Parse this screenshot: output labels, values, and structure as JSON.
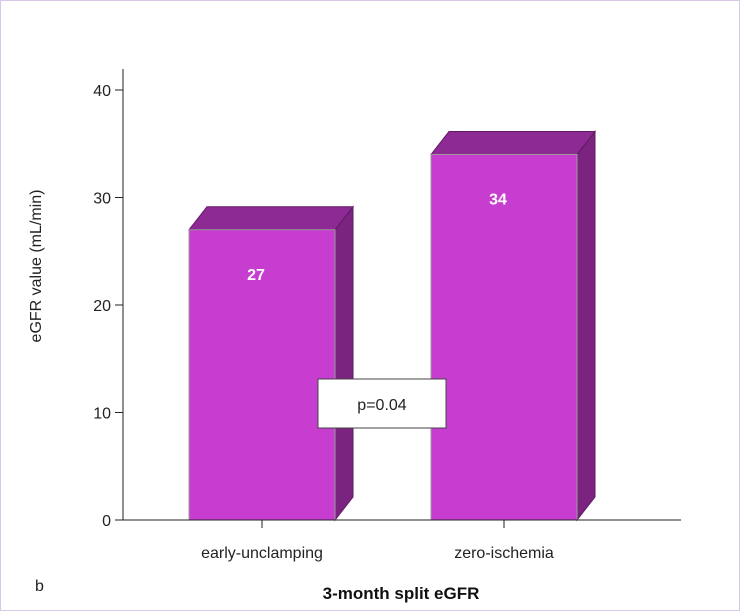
{
  "panel_label": "b",
  "colors": {
    "bar_front": "#c63dcf",
    "bar_top": "#8e2a94",
    "bar_side": "#7a2480",
    "bar_edge": "#5e1a63",
    "axis": "#222222"
  },
  "chart_data": {
    "type": "bar",
    "title": "3-month split eGFR",
    "xlabel": "3-month split eGFR",
    "ylabel": "eGFR value (mL/min)",
    "categories": [
      "early-unclamping",
      "zero-ischemia"
    ],
    "values": [
      27,
      34
    ],
    "value_labels": [
      "27",
      "34"
    ],
    "ylim": [
      0,
      40
    ],
    "yticks": [
      0,
      10,
      20,
      30,
      40
    ],
    "annotation": "p=0.04",
    "style": "3d",
    "grid": false
  }
}
